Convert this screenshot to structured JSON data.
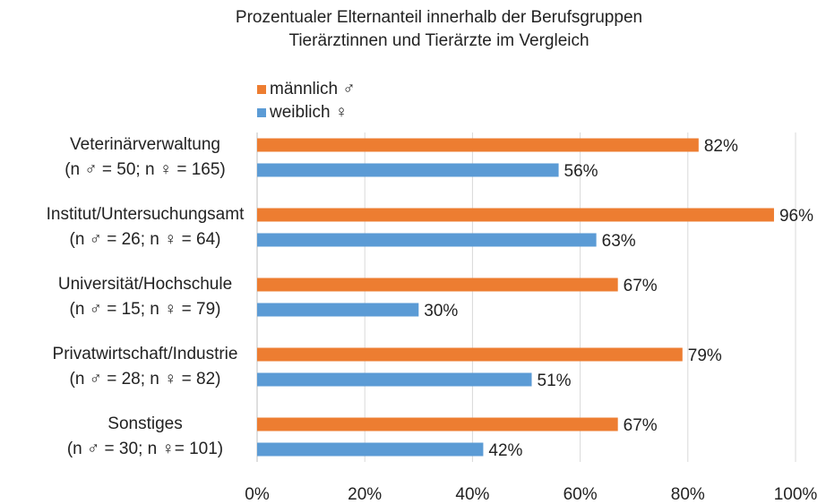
{
  "chart_data": {
    "type": "barh",
    "title": "Prozentualer Elternanteil innerhalb der Berufsgruppen",
    "subtitle": "Tierärztinnen und Tierärzte im Vergleich",
    "categories": [
      "Veterinärverwaltung",
      "Institut/Untersuchungsamt",
      "Universität/Hochschule",
      "Privatwirtschaft/Industrie",
      "Sonstiges"
    ],
    "category_notes": [
      "(n ♂ = 50; n ♀ = 165)",
      "(n ♂ = 26; n ♀ = 64)",
      "(n ♂ = 15; n ♀ = 79)",
      "(n ♂ = 28; n ♀ = 82)",
      "(n ♂ = 30; n ♀= 101)"
    ],
    "series": [
      {
        "name": "männlich ♂",
        "color": "#ed7d31",
        "values": [
          82,
          96,
          67,
          79,
          67
        ],
        "value_labels": [
          "82%",
          "96%",
          "67%",
          "79%",
          "67%"
        ]
      },
      {
        "name": "weiblich ♀",
        "color": "#5b9bd5",
        "values": [
          56,
          63,
          30,
          51,
          42
        ],
        "value_labels": [
          "56%",
          "63%",
          "30%",
          "51%",
          "42%"
        ]
      }
    ],
    "xlim": [
      0,
      100
    ],
    "xticks": [
      {
        "value": 0,
        "label": "0%"
      },
      {
        "value": 20,
        "label": "20%"
      },
      {
        "value": 40,
        "label": "40%"
      },
      {
        "value": 60,
        "label": "60%"
      },
      {
        "value": 80,
        "label": "80%"
      },
      {
        "value": 100,
        "label": "100%"
      }
    ],
    "grid": true,
    "legend": "top"
  }
}
